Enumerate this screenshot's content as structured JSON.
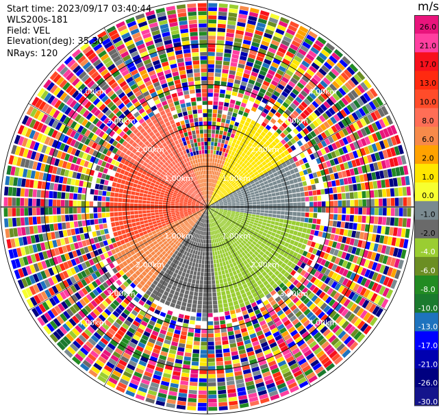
{
  "header": {
    "start_time": "Start time: 2023/09/17 03:40:44",
    "sensor": "WLS200s-181",
    "field": "Field: VEL",
    "elevation": "Elevation(deg): 35.30",
    "nrays": "NRays: 120"
  },
  "colorbar": {
    "unit": "m/s",
    "ticks": [
      "26.0",
      "21.0",
      "17.0",
      "13.0",
      "10.0",
      "8.0",
      "6.0",
      "2.0",
      "1.0",
      "0.0",
      "-1.0",
      "-2.0",
      "-4.0",
      "-6.0",
      "-8.0",
      "-10.0",
      "-13.0",
      "-17.0",
      "-21.0",
      "-26.0",
      "-30.0"
    ],
    "colors": [
      "#e9147c",
      "#ff3fa0",
      "#f7101c",
      "#ff2a10",
      "#ff4c2a",
      "#ff6e56",
      "#f78a4a",
      "#ffa200",
      "#ffe600",
      "#f7ff30",
      "#7a8a90",
      "#6a6a6a",
      "#9acd32",
      "#6b8e23",
      "#228b22",
      "#1a7a2e",
      "#1e73be",
      "#0000ff",
      "#0000b0",
      "#000080",
      "#14148c"
    ]
  },
  "ring_labels": [
    "1.00km",
    "2.00km",
    "3.00km",
    "4.00km"
  ],
  "chart_data": {
    "type": "ppi",
    "field": "VEL",
    "units": "m/s",
    "elevation_deg": 35.3,
    "n_rays": 120,
    "range_rings_km": [
      1,
      2,
      3,
      4
    ],
    "velocity_sectors": [
      {
        "azimuth_deg": [
          300,
          340
        ],
        "range_km": [
          0,
          2.6
        ],
        "value": 6.0
      },
      {
        "azimuth_deg": [
          245,
          300
        ],
        "range_km": [
          0,
          2.4
        ],
        "value": 8.0
      },
      {
        "azimuth_deg": [
          340,
          20
        ],
        "range_km": [
          0,
          1.3
        ],
        "value": 2.0
      },
      {
        "azimuth_deg": [
          20,
          60
        ],
        "range_km": [
          0,
          2.4
        ],
        "value": 0.0
      },
      {
        "azimuth_deg": [
          60,
          100
        ],
        "range_km": [
          0,
          2.4
        ],
        "value": -2.0
      },
      {
        "azimuth_deg": [
          100,
          175
        ],
        "range_km": [
          0,
          2.6
        ],
        "value": -6.0
      },
      {
        "azimuth_deg": [
          175,
          215
        ],
        "range_km": [
          0,
          2.6
        ],
        "value": -4.0
      },
      {
        "azimuth_deg": [
          215,
          245
        ],
        "range_km": [
          0,
          2.6
        ],
        "value": 2.0
      }
    ]
  }
}
